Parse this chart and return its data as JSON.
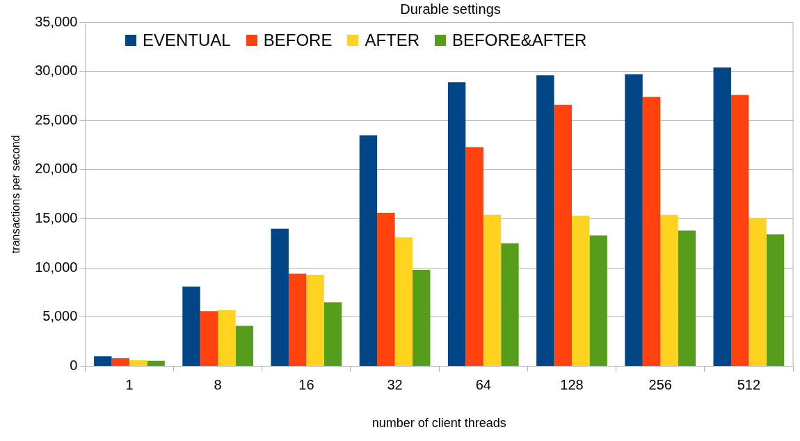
{
  "chart_data": {
    "type": "bar",
    "title": "Durable settings",
    "xlabel": "number of client threads",
    "ylabel": "transactions per second",
    "categories": [
      "1",
      "8",
      "16",
      "32",
      "64",
      "128",
      "256",
      "512"
    ],
    "series": [
      {
        "name": "EVENTUAL",
        "color": "#004586",
        "values": [
          1000,
          8100,
          14000,
          23500,
          28900,
          29600,
          29700,
          30400
        ]
      },
      {
        "name": "BEFORE",
        "color": "#ff420e",
        "values": [
          800,
          5600,
          9400,
          15600,
          22300,
          26600,
          27400,
          27600
        ]
      },
      {
        "name": "AFTER",
        "color": "#ffd320",
        "values": [
          600,
          5700,
          9300,
          13100,
          15400,
          15300,
          15400,
          15100
        ]
      },
      {
        "name": "BEFORE&AFTER",
        "color": "#579d1c",
        "values": [
          550,
          4100,
          6500,
          9800,
          12500,
          13300,
          13800,
          13400
        ]
      }
    ],
    "ylim": [
      0,
      35000
    ],
    "yticks": [
      0,
      {
        "value": 5000,
        "label": "5,000"
      },
      {
        "value": 10000,
        "label": "10,000"
      },
      {
        "value": 15000,
        "label": "15,000"
      },
      {
        "value": 20000,
        "label": "20,000"
      },
      {
        "value": 25000,
        "label": "25,000"
      },
      {
        "value": 30000,
        "label": "30,000"
      },
      {
        "value": 35000,
        "label": "35,000"
      }
    ],
    "grid": "y",
    "legend": "top"
  }
}
